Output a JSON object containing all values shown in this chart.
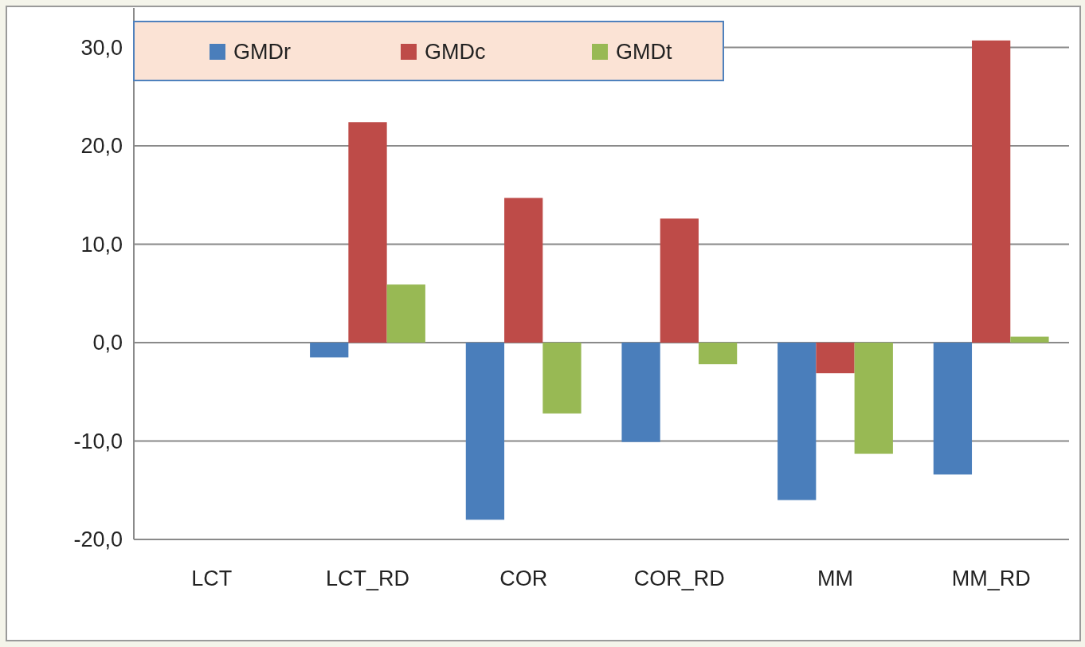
{
  "chart_data": {
    "type": "bar",
    "categories": [
      "LCT",
      "LCT_RD",
      "COR",
      "COR_RD",
      "MM",
      "MM_RD"
    ],
    "series": [
      {
        "name": "GMDr",
        "color": "#4a7ebb",
        "values": [
          0,
          -1.5,
          -18.0,
          -10.1,
          -16.0,
          -13.4
        ]
      },
      {
        "name": "GMDc",
        "color": "#be4b48",
        "values": [
          0,
          22.4,
          14.7,
          12.6,
          -3.1,
          30.7
        ]
      },
      {
        "name": "GMDt",
        "color": "#98b954",
        "values": [
          0,
          5.9,
          -7.2,
          -2.2,
          -11.3,
          0.6
        ]
      }
    ],
    "ylim": [
      -20,
      34
    ],
    "yticks": [
      {
        "value": -20,
        "label": "-20,0"
      },
      {
        "value": -10,
        "label": "-10,0"
      },
      {
        "value": 0,
        "label": "0,0"
      },
      {
        "value": 10,
        "label": "10,0"
      },
      {
        "value": 20,
        "label": "20,0"
      },
      {
        "value": 30,
        "label": "30,0"
      }
    ],
    "grid": "y",
    "legend": "top left"
  }
}
